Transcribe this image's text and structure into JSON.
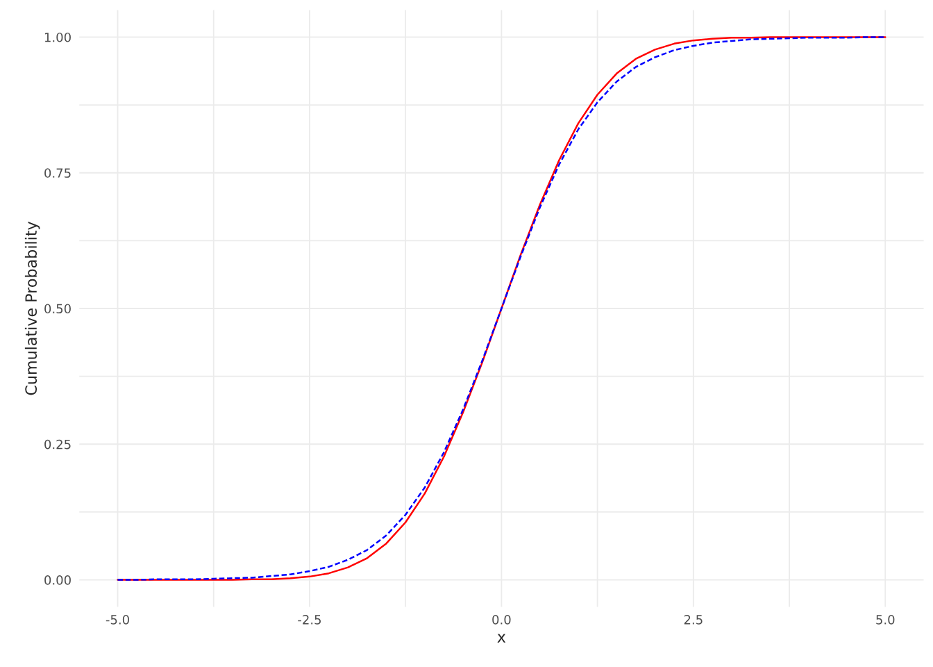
{
  "chart_data": {
    "type": "line",
    "xlabel": "x",
    "ylabel": "Cumulative Probability",
    "x": [
      -5,
      -4.75,
      -4.5,
      -4.25,
      -4,
      -3.75,
      -3.5,
      -3.25,
      -3,
      -2.75,
      -2.5,
      -2.25,
      -2,
      -1.75,
      -1.5,
      -1.25,
      -1,
      -0.75,
      -0.5,
      -0.25,
      0,
      0.25,
      0.5,
      0.75,
      1,
      1.25,
      1.5,
      1.75,
      2,
      2.25,
      2.5,
      2.75,
      3,
      3.25,
      3.5,
      3.75,
      4,
      4.25,
      4.5,
      4.75,
      5
    ],
    "series": [
      {
        "color": "#ff0000",
        "line_style": "solid",
        "values": [
          0.0,
          0.0,
          0.0,
          0.0,
          0.0,
          0.0,
          0.0,
          0.001,
          0.001,
          0.003,
          0.006,
          0.012,
          0.023,
          0.04,
          0.067,
          0.106,
          0.159,
          0.227,
          0.309,
          0.401,
          0.5,
          0.599,
          0.691,
          0.773,
          0.841,
          0.894,
          0.933,
          0.96,
          0.977,
          0.988,
          0.994,
          0.997,
          0.999,
          0.999,
          1.0,
          1.0,
          1.0,
          1.0,
          1.0,
          1.0,
          1.0
        ]
      },
      {
        "color": "#0000ff",
        "line_style": "dashed",
        "values": [
          0.0,
          0.0,
          0.001,
          0.001,
          0.001,
          0.002,
          0.003,
          0.004,
          0.007,
          0.01,
          0.016,
          0.024,
          0.037,
          0.055,
          0.082,
          0.12,
          0.17,
          0.235,
          0.314,
          0.404,
          0.5,
          0.596,
          0.686,
          0.765,
          0.83,
          0.88,
          0.918,
          0.945,
          0.963,
          0.976,
          0.984,
          0.99,
          0.993,
          0.996,
          0.997,
          0.998,
          0.999,
          0.999,
          0.999,
          1.0,
          1.0
        ]
      }
    ],
    "xlim": [
      -5.5,
      5.5
    ],
    "ylim": [
      -0.05,
      1.05
    ],
    "xticks": [
      {
        "value": -5,
        "label": "-5.0"
      },
      {
        "value": -3.75,
        "label": null
      },
      -2.5,
      {
        "value": -1.25,
        "label": null
      },
      {
        "value": 0,
        "label": "0.0"
      },
      {
        "value": 1.25,
        "label": null
      },
      2.5,
      {
        "value": 3.75,
        "label": null
      },
      {
        "value": 5,
        "label": "5.0"
      }
    ],
    "yticks": [
      {
        "value": 0,
        "label": "0.00"
      },
      {
        "value": 0.125,
        "label": null
      },
      {
        "value": 0.25,
        "label": "0.25"
      },
      {
        "value": 0.375,
        "label": null
      },
      {
        "value": 0.5,
        "label": "0.50"
      },
      {
        "value": 0.625,
        "label": null
      },
      {
        "value": 0.75,
        "label": "0.75"
      },
      {
        "value": 0.875,
        "label": null
      },
      {
        "value": 1,
        "label": "1.00"
      }
    ],
    "grid": true,
    "legend": false
  }
}
